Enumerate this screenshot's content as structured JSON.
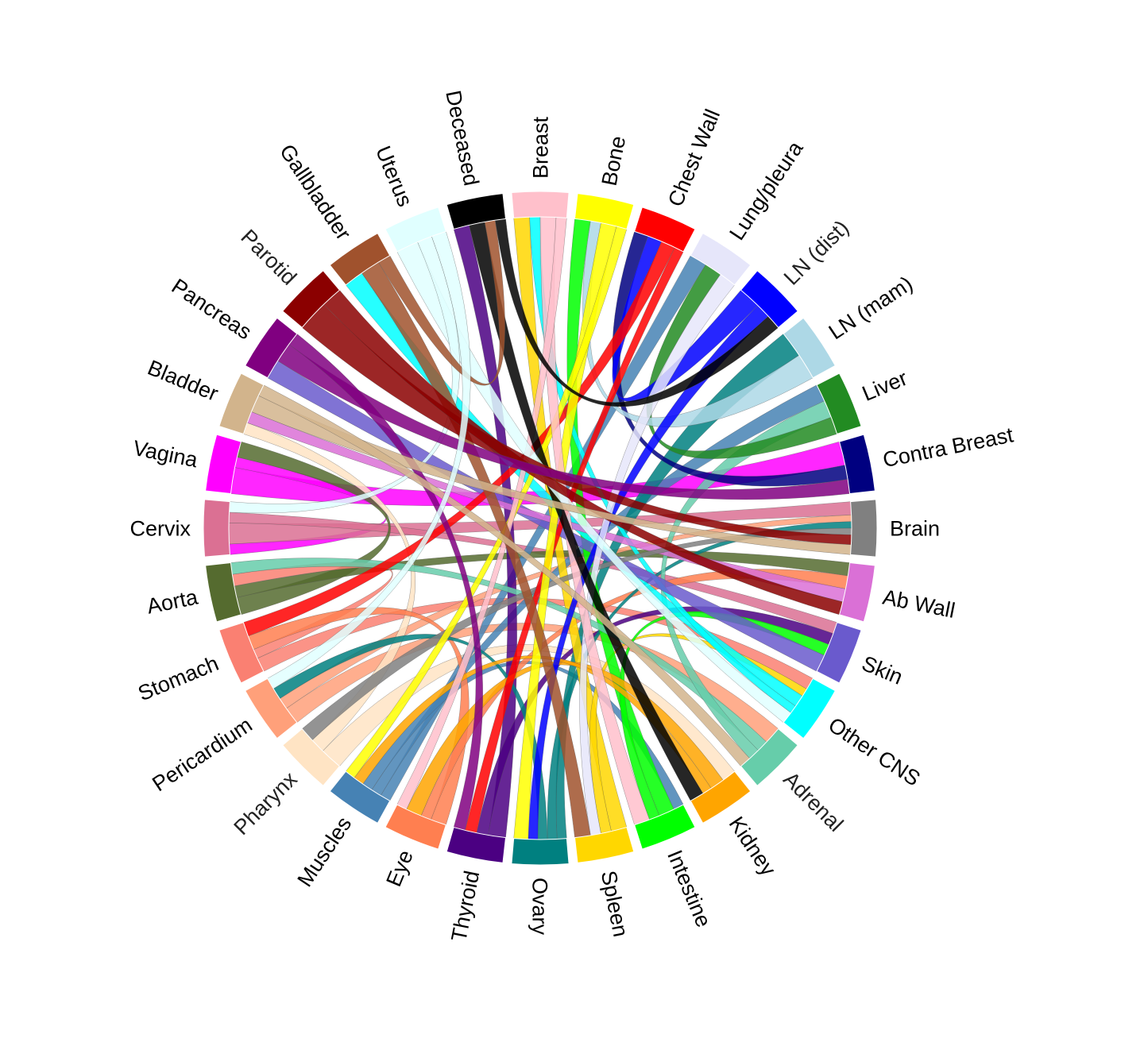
{
  "diagram": {
    "type": "chord",
    "nodes": [
      {
        "label": "Breast",
        "color": "#ffc0cb"
      },
      {
        "label": "Bone",
        "color": "#ffff00"
      },
      {
        "label": "Chest Wall",
        "color": "#ff0000"
      },
      {
        "label": "Lung/pleura",
        "color": "#e6e6fa"
      },
      {
        "label": "LN (dist)",
        "color": "#0000ff"
      },
      {
        "label": "LN (mam)",
        "color": "#add8e6"
      },
      {
        "label": "Liver",
        "color": "#228b22"
      },
      {
        "label": "Contra Breast",
        "color": "#000080"
      },
      {
        "label": "Brain",
        "color": "#808080"
      },
      {
        "label": "Ab Wall",
        "color": "#da70d6"
      },
      {
        "label": "Skin",
        "color": "#6a5acd"
      },
      {
        "label": "Other CNS",
        "color": "#00ffff"
      },
      {
        "label": "Adrenal",
        "color": "#66cdaa"
      },
      {
        "label": "Kidney",
        "color": "#ffa500"
      },
      {
        "label": "Intestine",
        "color": "#00ff00"
      },
      {
        "label": "Spleen",
        "color": "#ffd700"
      },
      {
        "label": "Ovary",
        "color": "#008080"
      },
      {
        "label": "Thyroid",
        "color": "#4b0082"
      },
      {
        "label": "Eye",
        "color": "#ff7f50"
      },
      {
        "label": "Muscles",
        "color": "#4682b4"
      },
      {
        "label": "Pharynx",
        "color": "#ffe4c4"
      },
      {
        "label": "Pericardium",
        "color": "#ffa07a"
      },
      {
        "label": "Stomach",
        "color": "#fa8072"
      },
      {
        "label": "Aorta",
        "color": "#556b2f"
      },
      {
        "label": "Cervix",
        "color": "#db7093"
      },
      {
        "label": "Vagina",
        "color": "#ff00ff"
      },
      {
        "label": "Bladder",
        "color": "#d2b48c"
      },
      {
        "label": "Pancreas",
        "color": "#800080"
      },
      {
        "label": "Parotid",
        "color": "#8b0000"
      },
      {
        "label": "Gallbladder",
        "color": "#a0522d"
      },
      {
        "label": "Uterus",
        "color": "#e0ffff"
      },
      {
        "label": "Deceased",
        "color": "#000000"
      }
    ],
    "links": [
      [
        "Vagina",
        "Contra Breast",
        5
      ],
      [
        "Vagina",
        "Cervix",
        2
      ],
      [
        "Cervix",
        "Brain",
        4
      ],
      [
        "Cervix",
        "Skin",
        2
      ],
      [
        "Aorta",
        "Vagina",
        3
      ],
      [
        "Aorta",
        "Ab Wall",
        2
      ],
      [
        "Stomach",
        "Other CNS",
        3
      ],
      [
        "Stomach",
        "Aorta",
        2
      ],
      [
        "Pericardium",
        "Adrenal",
        3
      ],
      [
        "Pericardium",
        "Brain",
        2
      ],
      [
        "Pharynx",
        "Kidney",
        3
      ],
      [
        "Pharynx",
        "Bladder",
        2
      ],
      [
        "Muscles",
        "Lung/pleura",
        2
      ],
      [
        "Muscles",
        "Liver",
        2
      ],
      [
        "Muscles",
        "Intestine",
        2
      ],
      [
        "Eye",
        "Stomach",
        3
      ],
      [
        "Eye",
        "Ab Wall",
        2
      ],
      [
        "Thyroid",
        "Deceased",
        3
      ],
      [
        "Thyroid",
        "Skin",
        2
      ],
      [
        "Ovary",
        "LN (mam)",
        2
      ],
      [
        "Ovary",
        "Brain",
        2
      ],
      [
        "Ovary",
        "Pericardium",
        2
      ],
      [
        "Spleen",
        "Breast",
        3
      ],
      [
        "Spleen",
        "Other CNS",
        2
      ],
      [
        "Intestine",
        "Bone",
        3
      ],
      [
        "Intestine",
        "Skin",
        2
      ],
      [
        "Kidney",
        "Eye",
        3
      ],
      [
        "Kidney",
        "Muscles",
        2
      ],
      [
        "Adrenal",
        "Aorta",
        2
      ],
      [
        "Adrenal",
        "Liver",
        2
      ],
      [
        "Other CNS",
        "Gallbladder",
        3
      ],
      [
        "Other CNS",
        "Breast",
        2
      ],
      [
        "Skin",
        "Pancreas",
        3
      ],
      [
        "Ab Wall",
        "Bladder",
        2
      ],
      [
        "Brain",
        "Pharynx",
        2
      ],
      [
        "Contra Breast",
        "Chest Wall",
        3
      ],
      [
        "Liver",
        "Lung/pleura",
        2
      ],
      [
        "LN (mam)",
        "Bone",
        2
      ],
      [
        "LN (dist)",
        "Chest Wall",
        3
      ],
      [
        "LN (dist)",
        "Ovary",
        2
      ],
      [
        "Lung/pleura",
        "Spleen",
        2
      ],
      [
        "Chest Wall",
        "Stomach",
        3
      ],
      [
        "Chest Wall",
        "Thyroid",
        2
      ],
      [
        "Bone",
        "Ovary",
        3
      ],
      [
        "Bone",
        "Muscles",
        2
      ],
      [
        "Breast",
        "Intestine",
        3
      ],
      [
        "Breast",
        "Eye",
        2
      ],
      [
        "Deceased",
        "Kidney",
        3
      ],
      [
        "Uterus",
        "Other CNS",
        3
      ],
      [
        "Uterus",
        "Cervix",
        2
      ],
      [
        "Gallbladder",
        "Spleen",
        3
      ],
      [
        "Gallbladder",
        "Deceased",
        2
      ],
      [
        "Parotid",
        "Brain",
        3
      ],
      [
        "Parotid",
        "Ab Wall",
        2
      ],
      [
        "Pancreas",
        "Contra Breast",
        3
      ],
      [
        "Pancreas",
        "Thyroid",
        2
      ],
      [
        "Bladder",
        "Brain",
        3
      ],
      [
        "Bladder",
        "Adrenal",
        2
      ],
      [
        "Deceased",
        "LN (dist)",
        2
      ],
      [
        "Uterus",
        "Pericardium",
        2
      ]
    ]
  }
}
